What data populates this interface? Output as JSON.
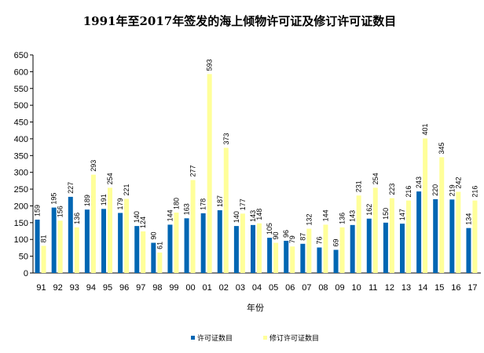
{
  "chart_data": {
    "type": "bar",
    "title": "1991年至2017年签发的海上倾物许可证及修订许可证数目",
    "xlabel": "年份",
    "ylabel": "",
    "ylim": [
      0,
      650
    ],
    "yticks": [
      0,
      50,
      100,
      150,
      200,
      250,
      300,
      350,
      400,
      450,
      500,
      550,
      600,
      650
    ],
    "grid": false,
    "legend_position": "bottom",
    "categories": [
      "91",
      "92",
      "93",
      "94",
      "95",
      "96",
      "97",
      "98",
      "99",
      "00",
      "01",
      "02",
      "03",
      "04",
      "05",
      "06",
      "07",
      "08",
      "09",
      "10",
      "11",
      "12",
      "13",
      "14",
      "15",
      "16",
      "17"
    ],
    "series": [
      {
        "name": "许可证数目",
        "color": "#0066B3",
        "values": [
          159,
          195,
          227,
          189,
          191,
          179,
          140,
          90,
          144,
          163,
          178,
          187,
          140,
          143,
          105,
          96,
          87,
          76,
          69,
          143,
          162,
          150,
          147,
          243,
          220,
          219,
          134
        ]
      },
      {
        "name": "修订许可证数目",
        "color": "#FFFF99",
        "values": [
          81,
          156,
          136,
          293,
          254,
          221,
          124,
          61,
          180,
          277,
          593,
          373,
          177,
          148,
          90,
          79,
          132,
          144,
          136,
          231,
          254,
          223,
          216,
          401,
          345,
          242,
          216
        ]
      }
    ]
  }
}
